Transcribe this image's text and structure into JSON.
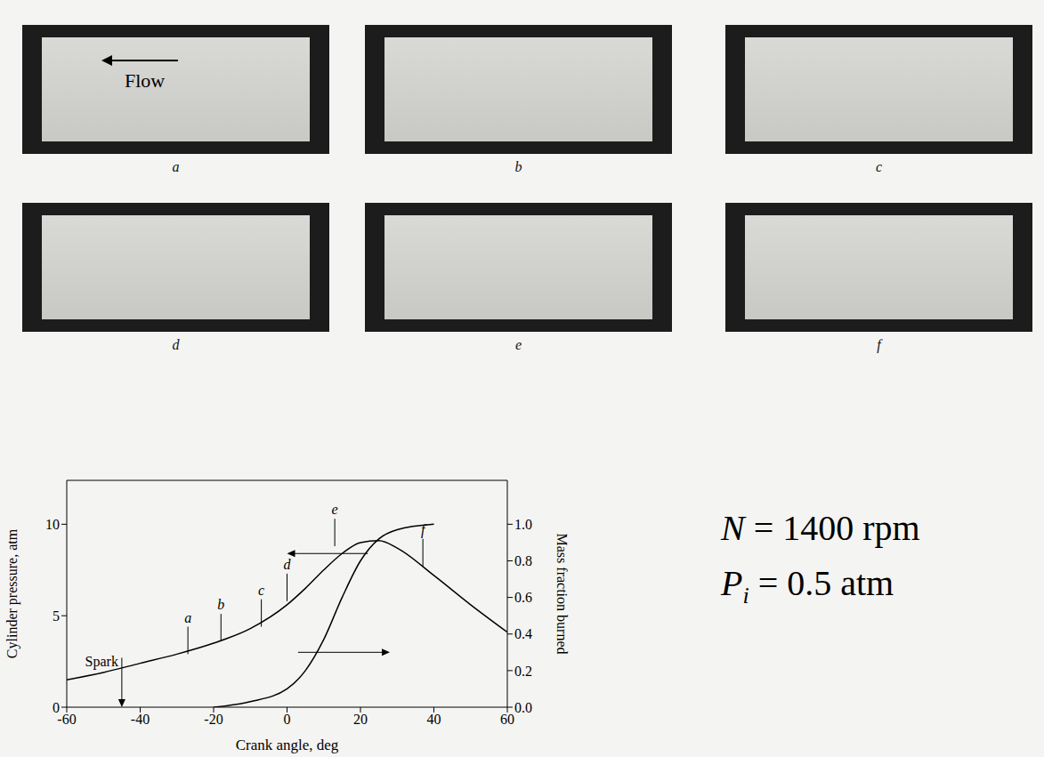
{
  "photos": {
    "labels": [
      "a",
      "b",
      "c",
      "d",
      "e",
      "f"
    ],
    "flow_label": "Flow"
  },
  "chart_data": {
    "type": "line",
    "xlabel": "Crank angle, deg",
    "ylabel": "Cylinder pressure, atm",
    "y2label": "Mass fraction burned",
    "x": [
      -60,
      -50,
      -40,
      -30,
      -20,
      -10,
      0,
      5,
      10,
      15,
      20,
      25,
      30,
      40,
      50,
      60
    ],
    "series": [
      {
        "color": "#000000",
        "axis": "y",
        "values": [
          1.5,
          1.9,
          2.4,
          2.9,
          3.5,
          4.3,
          5.6,
          6.5,
          7.5,
          8.4,
          9.0,
          9.1,
          8.7,
          7.2,
          5.6,
          4.1
        ]
      },
      {
        "color": "#000000",
        "axis": "y2",
        "values": [
          null,
          null,
          null,
          null,
          0.0,
          0.03,
          0.1,
          0.2,
          0.37,
          0.6,
          0.8,
          0.92,
          0.97,
          1.0,
          null,
          null
        ]
      }
    ],
    "xlim": [
      -60,
      60
    ],
    "xticks": [
      -60,
      -40,
      -20,
      0,
      20,
      40,
      60
    ],
    "ylim": [
      0,
      12.4
    ],
    "yticks": [
      0,
      5,
      10
    ],
    "y2lim": [
      0,
      1.24
    ],
    "y2ticks": [
      {
        "value": 0,
        "label": "0.0"
      },
      0.2,
      0.4,
      0.6,
      0.8,
      {
        "value": 1,
        "label": "1.0"
      }
    ],
    "markers": [
      {
        "label": "a",
        "x": -27,
        "y": 2.9
      },
      {
        "label": "b",
        "x": -18,
        "y": 3.6
      },
      {
        "label": "c",
        "x": -7,
        "y": 4.4
      },
      {
        "label": "d",
        "x": 0,
        "y": 5.8
      },
      {
        "label": "e",
        "x": 13,
        "y": 8.8
      },
      {
        "label": "f",
        "x": 37,
        "y": 7.7
      }
    ],
    "spark": {
      "label": "Spark",
      "x": -45,
      "y": 2.7
    },
    "grid": false
  },
  "annotations": [
    {
      "symbol": "N",
      "text": "= 1400 rpm"
    },
    {
      "symbol": "P",
      "subscript": "i",
      "text": "= 0.5 atm"
    }
  ]
}
